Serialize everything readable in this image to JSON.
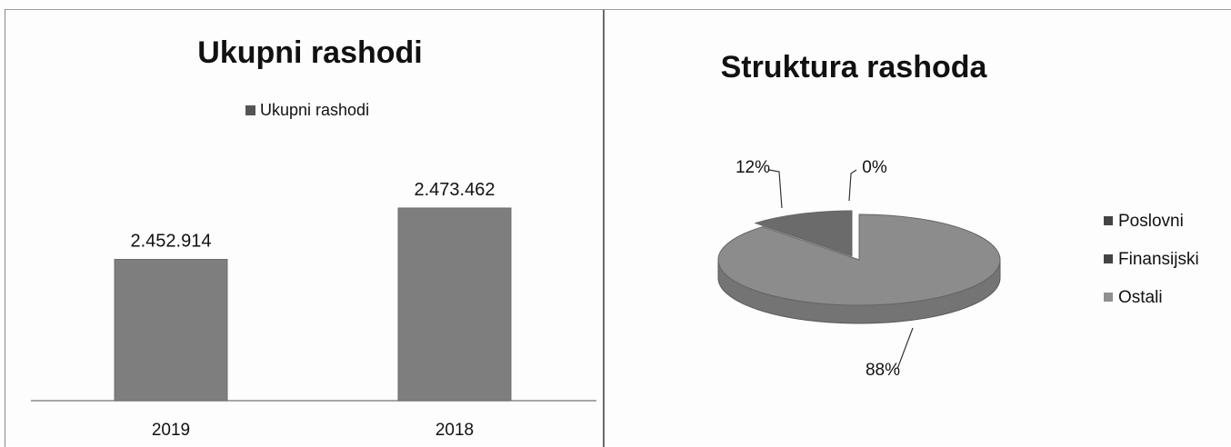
{
  "charts": {
    "bar": {
      "title": "Ukupni rashodi",
      "legend_label": "Ukupni rashodi"
    },
    "pie": {
      "title": "Struktura rashoda",
      "legend": [
        "Poslovni",
        "Finansijski",
        "Ostali"
      ]
    }
  },
  "chart_data": [
    {
      "type": "bar",
      "title": "Ukupni rashodi",
      "categories": [
        "2019",
        "2018"
      ],
      "series": [
        {
          "name": "Ukupni rashodi",
          "values": [
            2452914,
            2473462
          ],
          "labels": [
            "2.452.914",
            "2.473.462"
          ]
        }
      ],
      "xlabel": "",
      "ylabel": "",
      "legend_position": "top",
      "grid": false,
      "color": "#7e7e7e"
    },
    {
      "type": "pie",
      "title": "Struktura rashoda",
      "categories": [
        "Poslovni",
        "Finansijski",
        "Ostali"
      ],
      "values": [
        88,
        12,
        0
      ],
      "labels": [
        "88%",
        "12%",
        "0%"
      ],
      "legend_position": "right",
      "colors": [
        "#8c8c8c",
        "#6b6b6b",
        "#a8a8a8"
      ]
    }
  ]
}
